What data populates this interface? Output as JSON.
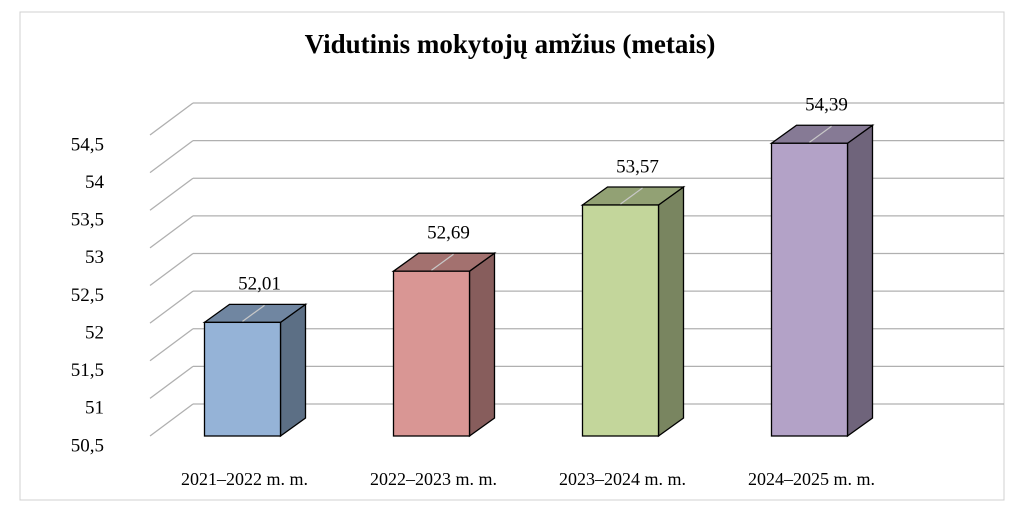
{
  "chart_data": {
    "type": "bar3d",
    "title": "Vidutinis mokytojų amžius (metais)",
    "categories": [
      "2021–2022 m. m.",
      "2022–2023 m. m.",
      "2023–2024 m. m.",
      "2024–2025 m. m."
    ],
    "values": [
      52.01,
      52.69,
      53.57,
      54.39
    ],
    "value_labels": [
      "52,01",
      "52,69",
      "53,57",
      "54,39"
    ],
    "colors": [
      "#95b3d7",
      "#d99694",
      "#c3d69b",
      "#b3a2c7"
    ],
    "ylim": [
      50.5,
      54.5
    ],
    "yticks": [
      {
        "value": 50.5,
        "label": "50,5"
      },
      51,
      {
        "value": 51.5,
        "label": "51,5"
      },
      52,
      {
        "value": 52.5,
        "label": "52,5"
      },
      53,
      {
        "value": 53.5,
        "label": "53,5"
      },
      54,
      {
        "value": 54.5,
        "label": "54,5"
      }
    ],
    "grid": true
  }
}
